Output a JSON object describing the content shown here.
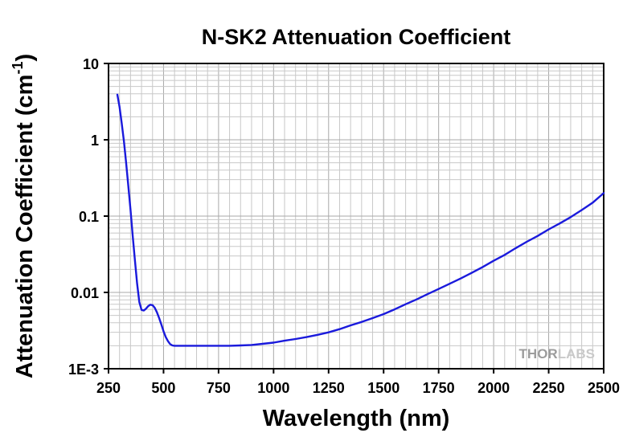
{
  "chart_data": {
    "type": "line",
    "title": "N-SK2 Attenuation Coefficient",
    "xlabel": "Wavelength (nm)",
    "ylabel": "Attenuation Coefficient (cm",
    "ylabel_superscript": "-1",
    "ylabel_suffix": ")",
    "xlim": [
      250,
      2500
    ],
    "ylim": [
      0.001,
      10
    ],
    "yscale": "log",
    "grid": true,
    "x_ticks": [
      250,
      500,
      750,
      1000,
      1250,
      1500,
      1750,
      2000,
      2250,
      2500
    ],
    "x_tick_labels": [
      "250",
      "500",
      "750",
      "1000",
      "1250",
      "1500",
      "1750",
      "2000",
      "2250",
      "2500"
    ],
    "y_ticks": [
      0.001,
      0.01,
      0.1,
      1,
      10
    ],
    "y_tick_labels": [
      "1E-3",
      "0.01",
      "0.1",
      "1",
      "10"
    ],
    "line_color": "#1a1adc",
    "series": [
      {
        "x": [
          290,
          300,
          310,
          320,
          330,
          340,
          350,
          360,
          370,
          380,
          390,
          400,
          410,
          420,
          430,
          440,
          450,
          460,
          470,
          480,
          490,
          500,
          510,
          520,
          530,
          540,
          550,
          560,
          570,
          600,
          650,
          700,
          750,
          800,
          850,
          900,
          950,
          1000,
          1050,
          1100,
          1150,
          1200,
          1250,
          1300,
          1350,
          1400,
          1450,
          1500,
          1550,
          1600,
          1650,
          1700,
          1750,
          1800,
          1850,
          1900,
          1950,
          2000,
          2050,
          2100,
          2150,
          2200,
          2250,
          2300,
          2350,
          2400,
          2450,
          2500
        ],
        "y": [
          3.9,
          2.7,
          1.65,
          0.95,
          0.5,
          0.25,
          0.12,
          0.055,
          0.026,
          0.013,
          0.0075,
          0.0059,
          0.0058,
          0.0061,
          0.0066,
          0.0069,
          0.0068,
          0.0063,
          0.0055,
          0.0046,
          0.0038,
          0.0031,
          0.0026,
          0.0023,
          0.0021,
          0.00202,
          0.002,
          0.002,
          0.002,
          0.002,
          0.002,
          0.002,
          0.002,
          0.002,
          0.00202,
          0.00205,
          0.00212,
          0.0022,
          0.00233,
          0.00245,
          0.0026,
          0.00278,
          0.003,
          0.0033,
          0.0037,
          0.0041,
          0.0046,
          0.0052,
          0.006,
          0.007,
          0.0081,
          0.0095,
          0.0111,
          0.013,
          0.0152,
          0.018,
          0.0215,
          0.026,
          0.031,
          0.038,
          0.046,
          0.055,
          0.067,
          0.08,
          0.097,
          0.12,
          0.15,
          0.2
        ]
      }
    ]
  },
  "watermark": {
    "brand_part1": "THOR",
    "brand_part2": "LABS"
  }
}
